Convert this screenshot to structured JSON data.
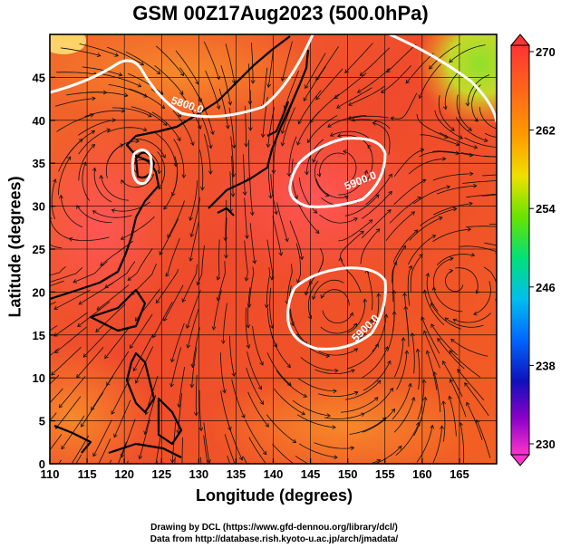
{
  "title": "GSM 00Z17Aug2023 (500.0hPa)",
  "xlabel": "Longitude (degrees)",
  "ylabel": "Latitude  (degrees)",
  "xticks": [
    "110",
    "115",
    "120",
    "125",
    "130",
    "135",
    "140",
    "145",
    "150",
    "155",
    "160",
    "165"
  ],
  "yticks": [
    "0",
    "5",
    "10",
    "15",
    "20",
    "25",
    "30",
    "35",
    "40",
    "45"
  ],
  "colorbar": {
    "labels": [
      "270",
      "262",
      "254",
      "246",
      "238",
      "230"
    ],
    "colors": [
      "#ff3333",
      "#ff8800",
      "#ffcc00",
      "#88ee00",
      "#00dd55",
      "#00bbee",
      "#0077ff",
      "#1111cc",
      "#8800cc",
      "#ff33cc"
    ]
  },
  "contours": [
    {
      "label": "5800.0"
    },
    {
      "label": "5900.0"
    },
    {
      "label": "5900.0"
    }
  ],
  "credit_line1": "Drawing by DCL (https://www.gfd-dennou.org/library/dcl/)",
  "credit_line2": "Data from http://database.rish.kyoto-u.ac.jp/arch/jmadata/"
}
